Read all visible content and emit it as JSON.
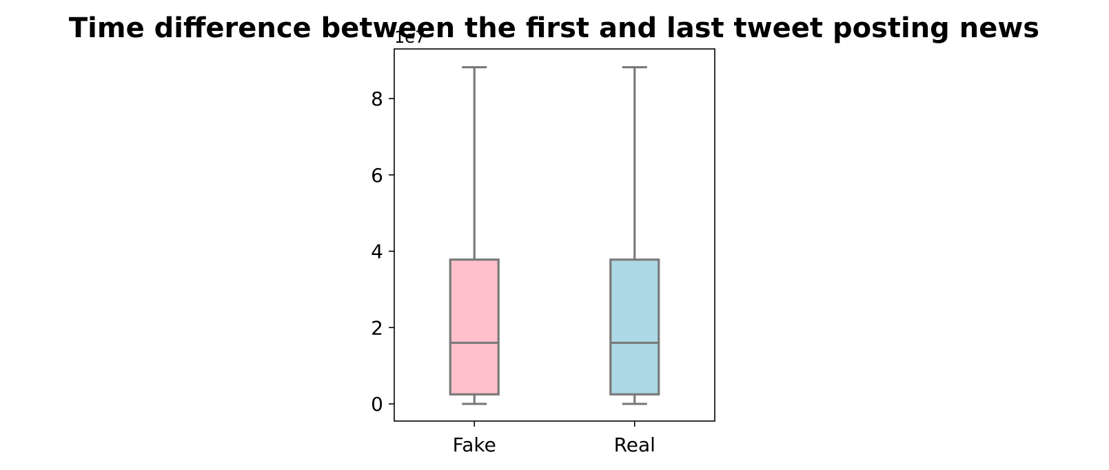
{
  "chart_data": {
    "type": "box",
    "title": "Time difference between the first and last tweet posting news",
    "xlabel": "",
    "ylabel": "",
    "y_offset_label": "1e7",
    "y_scale": 10000000,
    "ylim": [
      -0.45,
      9.3
    ],
    "yticks": [
      0,
      2,
      4,
      6,
      8
    ],
    "grid": false,
    "legend": "none",
    "categories": [
      "Fake",
      "Real"
    ],
    "boxes": [
      {
        "category": "Fake",
        "whisker_low": 0.0,
        "q1": 0.25,
        "median": 1.6,
        "q3": 3.78,
        "whisker_high": 8.82,
        "color": "#ffc0cb"
      },
      {
        "category": "Real",
        "whisker_low": 0.0,
        "q1": 0.25,
        "median": 1.6,
        "q3": 3.78,
        "whisker_high": 8.82,
        "color": "#add8e6"
      }
    ],
    "line_color": "#7a7a7a",
    "axis_color": "#000000"
  }
}
